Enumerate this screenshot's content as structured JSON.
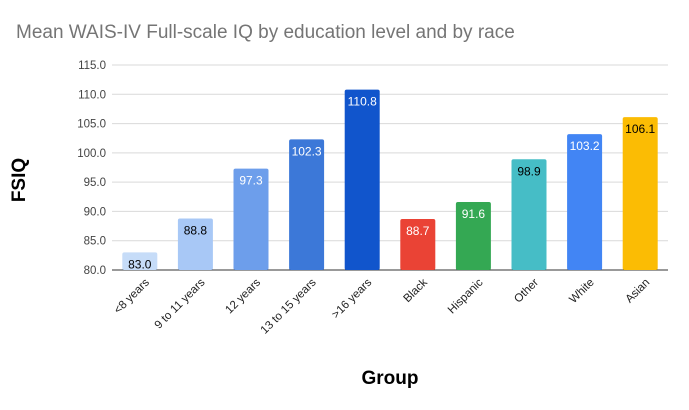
{
  "chart_data": {
    "type": "bar",
    "title": "Mean WAIS-IV Full-scale IQ by education level and by race",
    "xlabel": "Group",
    "ylabel": "FSIQ",
    "ylim": [
      80,
      115
    ],
    "yticks": [
      80,
      85,
      90,
      95,
      100,
      105,
      110,
      115
    ],
    "categories": [
      "<8 years",
      "9 to 11 years",
      "12 years",
      "13 to 15 years",
      ">16 years",
      "Black",
      "Hispanic",
      "Other",
      "White",
      "Asian"
    ],
    "values": [
      83.0,
      88.8,
      97.3,
      102.3,
      110.8,
      88.7,
      91.6,
      98.9,
      103.2,
      106.1
    ],
    "bar_colors": [
      "#c6dcf8",
      "#a8c8f6",
      "#6d9eeb",
      "#3c78d8",
      "#1155cc",
      "#ea4335",
      "#34a853",
      "#46bdc6",
      "#4285f4",
      "#fbbc04"
    ],
    "label_colors": [
      "#000000",
      "#000000",
      "#ffffff",
      "#ffffff",
      "#ffffff",
      "#ffffff",
      "#ffffff",
      "#000000",
      "#ffffff",
      "#000000"
    ],
    "grid": true
  }
}
